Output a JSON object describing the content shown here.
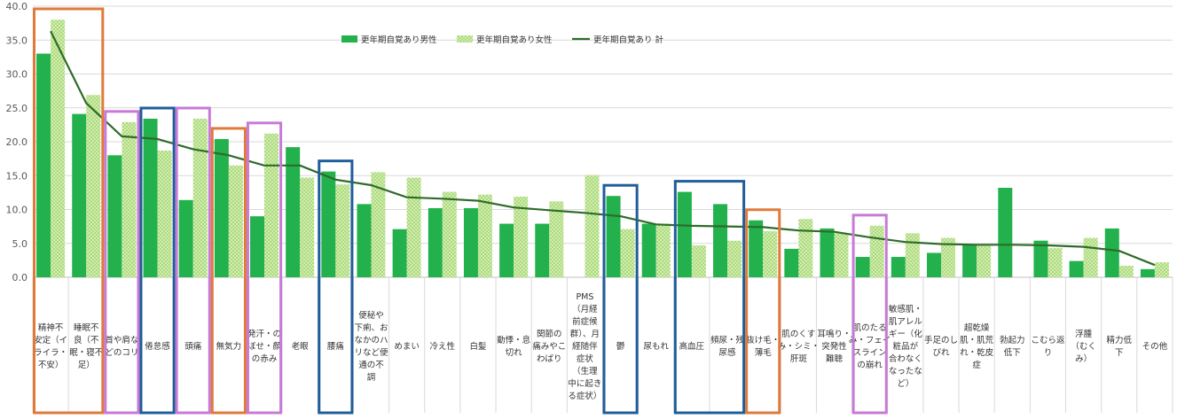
{
  "colors": {
    "male": "#22b14c",
    "female_fill": "#d4ecb0",
    "female_dot": "#8ccf5c",
    "line": "#2f6b2a",
    "grid": "#d9d9d9",
    "axis_text": "#595959",
    "box_orange": "#e07a3a",
    "box_purple": "#c77ad6",
    "box_blue": "#1f5e9a"
  },
  "chart_data": {
    "type": "bar",
    "ylim": [
      0,
      40
    ],
    "yticks": [
      "0.0",
      "5.0",
      "10.0",
      "15.0",
      "20.0",
      "25.0",
      "30.0",
      "35.0",
      "40.0"
    ],
    "legend_position": "top-center",
    "grid": true,
    "categories": [
      "精神不安定（イライラ・不安）",
      "睡眠不良（不眠・寝不足）",
      "首や肩などのコリ",
      "倦怠感",
      "頭痛",
      "無気力",
      "発汗・のぼせ・顔の赤み",
      "老眼",
      "腰痛",
      "便秘や下痢、おなかのハリなど便通の不調",
      "めまい",
      "冷え性",
      "白髪",
      "動悸・息切れ",
      "関節の痛みやこわばり",
      "PMS（月経前症候群）、月経随伴症状（生理中に起きる症状）",
      "鬱",
      "尿もれ",
      "高血圧",
      "頻尿・残尿感",
      "抜け毛・薄毛",
      "肌のくすみ・シミ・肝斑",
      "耳鳴り・突発性難聴",
      "肌のたるみ・フェイスラインの崩れ",
      "敏感肌・肌アレルギー（化粧品が合わなくなったなど）",
      "手足のしびれ",
      "超乾燥肌・肌荒れ・乾皮症",
      "勃起力低下",
      "こむら返り",
      "浮腫（むくみ）",
      "精力低下",
      "その他"
    ],
    "category_label_lines": [
      [
        "精神不",
        "安定（イ",
        "ライラ・",
        "不安）"
      ],
      [
        "睡眠不",
        "良（不",
        "眠・寝不",
        "足）"
      ],
      [
        "首や肩な",
        "どのコリ"
      ],
      [
        "倦怠感"
      ],
      [
        "頭痛"
      ],
      [
        "無気力"
      ],
      [
        "発汗・の",
        "ぼせ・顔",
        "の赤み"
      ],
      [
        "老眼"
      ],
      [
        "腰痛"
      ],
      [
        "便秘や",
        "下痢、お",
        "なかのハ",
        "リなど便",
        "通の不",
        "調"
      ],
      [
        "めまい"
      ],
      [
        "冷え性"
      ],
      [
        "白髪"
      ],
      [
        "動悸・息",
        "切れ"
      ],
      [
        "関節の",
        "痛みやこ",
        "わばり"
      ],
      [
        "PMS",
        "（月経",
        "前症候",
        "群）、月",
        "経随伴",
        "症状",
        "（生理",
        "中に起き",
        "る症状）"
      ],
      [
        "鬱"
      ],
      [
        "尿もれ"
      ],
      [
        "高血圧"
      ],
      [
        "頻尿・残",
        "尿感"
      ],
      [
        "抜け毛・",
        "薄毛"
      ],
      [
        "肌のくす",
        "み・シミ・",
        "肝斑"
      ],
      [
        "耳鳴り・",
        "突発性",
        "難聴"
      ],
      [
        "肌のたる",
        "み・フェイ",
        "スライン",
        "の崩れ"
      ],
      [
        "敏感肌・",
        "肌アレル",
        "ギー（化",
        "粧品が",
        "合わなく",
        "なったな",
        "ど）"
      ],
      [
        "手足のし",
        "びれ"
      ],
      [
        "超乾燥",
        "肌・肌荒",
        "れ・乾皮",
        "症"
      ],
      [
        "勃起力",
        "低下"
      ],
      [
        "こむら返",
        "り"
      ],
      [
        "浮腫",
        "（むく",
        "み）"
      ],
      [
        "精力低",
        "下"
      ],
      [
        "その他"
      ]
    ],
    "series": [
      {
        "name": "更年期自覚あり男性",
        "type": "bar",
        "values": [
          33.0,
          24.1,
          18.0,
          23.4,
          11.4,
          20.4,
          9.0,
          19.2,
          15.6,
          10.8,
          7.1,
          10.2,
          10.2,
          7.9,
          7.9,
          0.0,
          12.0,
          7.9,
          12.6,
          10.8,
          8.4,
          4.2,
          7.2,
          3.0,
          3.0,
          3.6,
          4.8,
          13.2,
          5.4,
          2.4,
          7.2,
          1.2
        ]
      },
      {
        "name": "更年期自覚あり女性",
        "type": "bar",
        "values": [
          38.0,
          26.9,
          22.9,
          18.7,
          23.4,
          16.5,
          21.2,
          14.7,
          13.7,
          15.5,
          14.7,
          12.6,
          12.2,
          11.9,
          11.2,
          15.1,
          7.1,
          7.9,
          4.7,
          5.4,
          6.8,
          8.6,
          6.5,
          7.6,
          6.5,
          5.8,
          4.7,
          0.0,
          4.3,
          5.8,
          1.7,
          2.2
        ]
      },
      {
        "name": "更年期自覚あり 計",
        "type": "line",
        "values": [
          36.3,
          25.7,
          20.8,
          20.4,
          18.9,
          18.0,
          16.5,
          16.5,
          14.4,
          13.6,
          11.8,
          11.6,
          11.3,
          10.3,
          9.9,
          9.5,
          9.0,
          7.8,
          7.6,
          7.5,
          7.4,
          6.9,
          6.7,
          5.9,
          5.2,
          4.9,
          4.8,
          4.8,
          4.7,
          4.5,
          3.9,
          1.8
        ]
      }
    ],
    "highlight_boxes": [
      {
        "from": 0,
        "to": 1,
        "color": "orange"
      },
      {
        "from": 2,
        "to": 2,
        "color": "purple"
      },
      {
        "from": 3,
        "to": 3,
        "color": "blue"
      },
      {
        "from": 4,
        "to": 4,
        "color": "purple"
      },
      {
        "from": 5,
        "to": 5,
        "color": "orange"
      },
      {
        "from": 6,
        "to": 6,
        "color": "purple"
      },
      {
        "from": 8,
        "to": 8,
        "color": "blue"
      },
      {
        "from": 16,
        "to": 16,
        "color": "blue"
      },
      {
        "from": 18,
        "to": 19,
        "color": "blue"
      },
      {
        "from": 20,
        "to": 20,
        "color": "orange"
      },
      {
        "from": 23,
        "to": 23,
        "color": "purple"
      }
    ]
  }
}
